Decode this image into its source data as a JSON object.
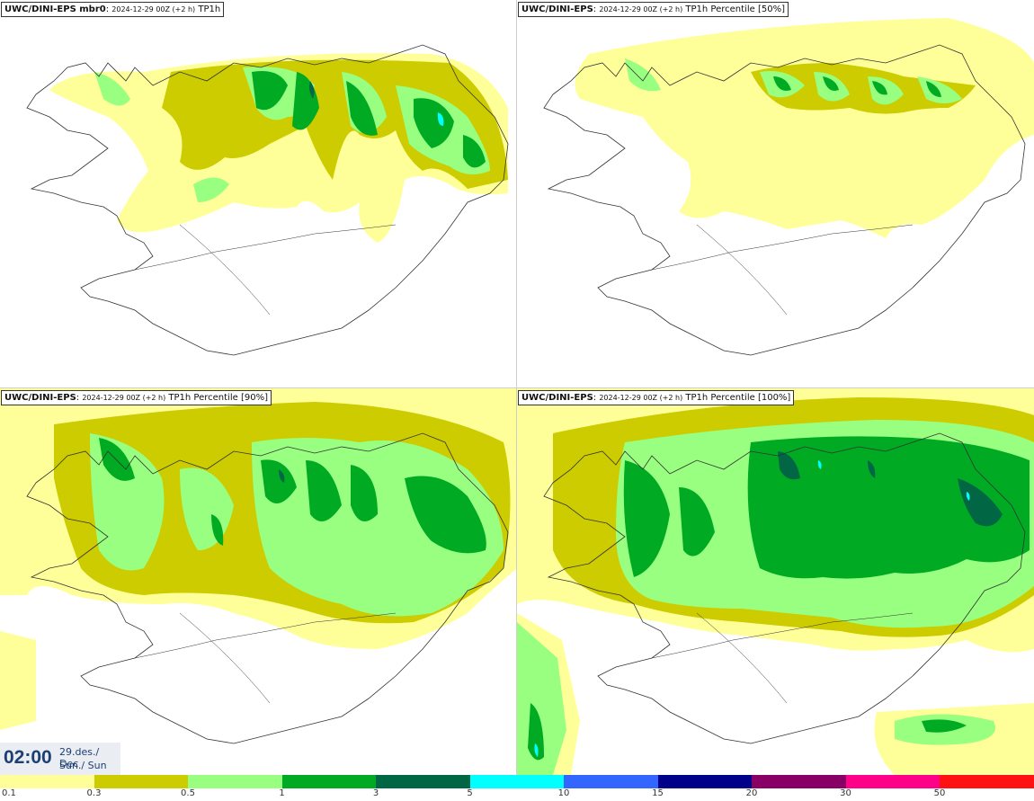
{
  "panels": [
    {
      "model": "UWC/DINI-EPS mbr0",
      "run": "2024-12-29 00Z (+2 h)",
      "field": "TP1h"
    },
    {
      "model": "UWC/DINI-EPS",
      "run": "2024-12-29 00Z (+2 h)",
      "field": "TP1h Percentile [50%]"
    },
    {
      "model": "UWC/DINI-EPS",
      "run": "2024-12-29 00Z (+2 h)",
      "field": "TP1h Percentile [90%]"
    },
    {
      "model": "UWC/DINI-EPS",
      "run": "2024-12-29 00Z (+2 h)",
      "field": "TP1h Percentile [100%]"
    }
  ],
  "valid_time": {
    "time": "02:00",
    "date": "29.des./ Dec",
    "day": "Sun./ Sun"
  },
  "legend": {
    "colors": [
      "#ffff99",
      "#cccc00",
      "#99ff80",
      "#00aa22",
      "#006644",
      "#00ffff",
      "#3366ff",
      "#000088",
      "#880066",
      "#ff0088",
      "#ff1111"
    ],
    "ticks": [
      "0.1",
      "0.3",
      "0.5",
      "1",
      "3",
      "5",
      "10",
      "15",
      "20",
      "30",
      "50"
    ]
  }
}
